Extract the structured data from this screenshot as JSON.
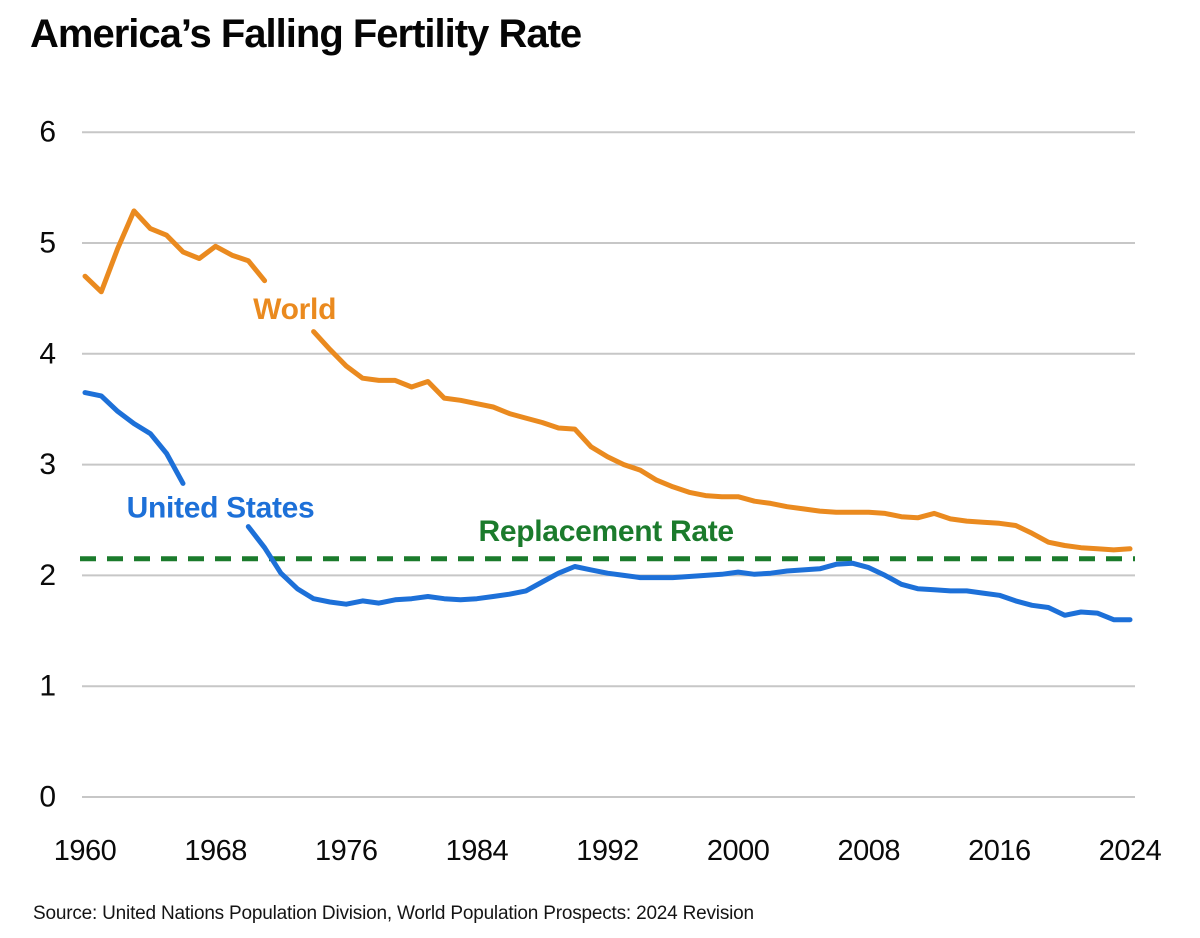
{
  "title": "America’s Falling Fertility Rate",
  "source_note": "Source: United Nations Population Division, World Population Prospects: 2024 Revision",
  "chart_data": {
    "type": "line",
    "title": "America’s Falling Fertility Rate",
    "xlabel": "",
    "ylabel": "",
    "x_range": [
      1960,
      2024
    ],
    "ylim": [
      0,
      6
    ],
    "yticks": [
      0,
      1,
      2,
      3,
      4,
      5,
      6
    ],
    "xticks": [
      1960,
      1968,
      1976,
      1984,
      1992,
      2000,
      2008,
      2016,
      2024
    ],
    "grid": "horizontal-only",
    "gridline_color": "#c7c7c7",
    "background": "#ffffff",
    "legend_position": "inline-labels-on-lines",
    "reference_line": {
      "label": "Replacement Rate",
      "value": 2.1,
      "drawn_at": 2.15,
      "style": "dashed",
      "color": "#1b7b2c",
      "label_pos": {
        "year": 1984.1,
        "value": 2.5
      }
    },
    "series": [
      {
        "name": "World",
        "color": "#ea8a1f",
        "label_pos": {
          "year": 1970.3,
          "value": 4.5
        },
        "segments": [
          [
            [
              1960,
              4.7
            ],
            [
              1961,
              4.56
            ],
            [
              1962,
              4.95
            ],
            [
              1963,
              5.29
            ],
            [
              1964,
              5.13
            ],
            [
              1965,
              5.07
            ],
            [
              1966,
              4.92
            ],
            [
              1967,
              4.86
            ],
            [
              1968,
              4.97
            ],
            [
              1969,
              4.89
            ],
            [
              1970,
              4.84
            ],
            [
              1971,
              4.66
            ]
          ],
          [
            [
              1974,
              4.2
            ],
            [
              1975,
              4.04
            ],
            [
              1976,
              3.89
            ],
            [
              1977,
              3.78
            ],
            [
              1978,
              3.76
            ],
            [
              1979,
              3.76
            ],
            [
              1980,
              3.7
            ],
            [
              1981,
              3.75
            ],
            [
              1982,
              3.6
            ],
            [
              1983,
              3.58
            ],
            [
              1984,
              3.55
            ],
            [
              1985,
              3.52
            ],
            [
              1986,
              3.46
            ],
            [
              1987,
              3.42
            ],
            [
              1988,
              3.38
            ],
            [
              1989,
              3.33
            ],
            [
              1990,
              3.32
            ],
            [
              1991,
              3.16
            ],
            [
              1992,
              3.07
            ],
            [
              1993,
              3.0
            ],
            [
              1994,
              2.95
            ],
            [
              1995,
              2.86
            ],
            [
              1996,
              2.8
            ],
            [
              1997,
              2.75
            ],
            [
              1998,
              2.72
            ],
            [
              1999,
              2.71
            ],
            [
              2000,
              2.71
            ],
            [
              2001,
              2.67
            ],
            [
              2002,
              2.65
            ],
            [
              2003,
              2.62
            ],
            [
              2004,
              2.6
            ],
            [
              2005,
              2.58
            ],
            [
              2006,
              2.57
            ],
            [
              2007,
              2.57
            ],
            [
              2008,
              2.57
            ],
            [
              2009,
              2.56
            ],
            [
              2010,
              2.53
            ],
            [
              2011,
              2.52
            ],
            [
              2012,
              2.56
            ],
            [
              2013,
              2.51
            ],
            [
              2014,
              2.49
            ],
            [
              2015,
              2.48
            ],
            [
              2016,
              2.47
            ],
            [
              2017,
              2.45
            ],
            [
              2018,
              2.38
            ],
            [
              2019,
              2.3
            ],
            [
              2020,
              2.27
            ],
            [
              2021,
              2.25
            ],
            [
              2022,
              2.24
            ],
            [
              2023,
              2.23
            ],
            [
              2024,
              2.24
            ]
          ]
        ]
      },
      {
        "name": "United States",
        "color": "#1d70d8",
        "label_pos": {
          "year": 1962.55,
          "value": 2.71
        },
        "segments": [
          [
            [
              1960,
              3.65
            ],
            [
              1961,
              3.62
            ],
            [
              1962,
              3.48
            ],
            [
              1963,
              3.37
            ],
            [
              1964,
              3.28
            ],
            [
              1965,
              3.1
            ],
            [
              1966,
              2.83
            ]
          ],
          [
            [
              1970,
              2.44
            ],
            [
              1971,
              2.25
            ],
            [
              1972,
              2.02
            ],
            [
              1973,
              1.88
            ],
            [
              1974,
              1.79
            ],
            [
              1975,
              1.76
            ],
            [
              1976,
              1.74
            ],
            [
              1977,
              1.77
            ],
            [
              1978,
              1.75
            ],
            [
              1979,
              1.78
            ],
            [
              1980,
              1.79
            ],
            [
              1981,
              1.81
            ],
            [
              1982,
              1.79
            ],
            [
              1983,
              1.78
            ],
            [
              1984,
              1.79
            ],
            [
              1985,
              1.81
            ],
            [
              1986,
              1.83
            ],
            [
              1987,
              1.86
            ],
            [
              1988,
              1.94
            ],
            [
              1989,
              2.02
            ],
            [
              1990,
              2.08
            ],
            [
              1991,
              2.05
            ],
            [
              1992,
              2.02
            ],
            [
              1993,
              2.0
            ],
            [
              1994,
              1.98
            ],
            [
              1995,
              1.98
            ],
            [
              1996,
              1.98
            ],
            [
              1997,
              1.99
            ],
            [
              1998,
              2.0
            ],
            [
              1999,
              2.01
            ],
            [
              2000,
              2.03
            ],
            [
              2001,
              2.01
            ],
            [
              2002,
              2.02
            ],
            [
              2003,
              2.04
            ],
            [
              2004,
              2.05
            ],
            [
              2005,
              2.06
            ],
            [
              2006,
              2.1
            ],
            [
              2007,
              2.11
            ],
            [
              2008,
              2.07
            ],
            [
              2009,
              2.0
            ],
            [
              2010,
              1.92
            ],
            [
              2011,
              1.88
            ],
            [
              2012,
              1.87
            ],
            [
              2013,
              1.86
            ],
            [
              2014,
              1.86
            ],
            [
              2015,
              1.84
            ],
            [
              2016,
              1.82
            ],
            [
              2017,
              1.77
            ],
            [
              2018,
              1.73
            ],
            [
              2019,
              1.71
            ],
            [
              2020,
              1.64
            ],
            [
              2021,
              1.67
            ],
            [
              2022,
              1.66
            ],
            [
              2023,
              1.6
            ],
            [
              2024,
              1.6
            ]
          ]
        ]
      }
    ]
  }
}
